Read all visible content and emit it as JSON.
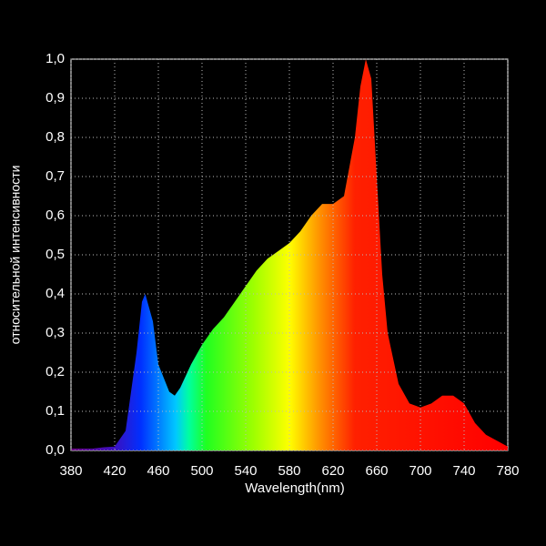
{
  "chart_data": {
    "type": "area",
    "xlabel": "Wavelength(nm)",
    "ylabel": "относительной интенсивности",
    "x": [
      380,
      390,
      400,
      410,
      420,
      430,
      440,
      445,
      448,
      455,
      460,
      470,
      475,
      480,
      490,
      500,
      510,
      520,
      530,
      540,
      550,
      560,
      570,
      580,
      590,
      600,
      610,
      620,
      630,
      640,
      645,
      650,
      655,
      660,
      665,
      670,
      680,
      690,
      700,
      710,
      720,
      730,
      740,
      750,
      760,
      770,
      780
    ],
    "y": [
      0.005,
      0.005,
      0.005,
      0.008,
      0.01,
      0.05,
      0.25,
      0.38,
      0.4,
      0.33,
      0.22,
      0.15,
      0.14,
      0.16,
      0.22,
      0.27,
      0.31,
      0.34,
      0.38,
      0.42,
      0.46,
      0.49,
      0.51,
      0.53,
      0.56,
      0.6,
      0.63,
      0.63,
      0.65,
      0.8,
      0.93,
      1.0,
      0.95,
      0.7,
      0.45,
      0.3,
      0.17,
      0.12,
      0.11,
      0.12,
      0.14,
      0.14,
      0.12,
      0.07,
      0.04,
      0.025,
      0.01
    ],
    "xlim": [
      380,
      780
    ],
    "xticks": [
      380,
      420,
      460,
      500,
      540,
      580,
      620,
      660,
      700,
      740,
      780
    ],
    "ylim": [
      0,
      1
    ],
    "yticks": [
      {
        "value": 0,
        "label": "0,0"
      },
      {
        "value": 0.1,
        "label": "0,1"
      },
      {
        "value": 0.2,
        "label": "0,2"
      },
      {
        "value": 0.3,
        "label": "0,3"
      },
      {
        "value": 0.4,
        "label": "0,4"
      },
      {
        "value": 0.5,
        "label": "0,5"
      },
      {
        "value": 0.6,
        "label": "0,6"
      },
      {
        "value": 0.7,
        "label": "0,7"
      },
      {
        "value": 0.8,
        "label": "0,8"
      },
      {
        "value": 0.9,
        "label": "0,9"
      },
      {
        "value": 1,
        "label": "1,0"
      }
    ],
    "grid": true
  }
}
